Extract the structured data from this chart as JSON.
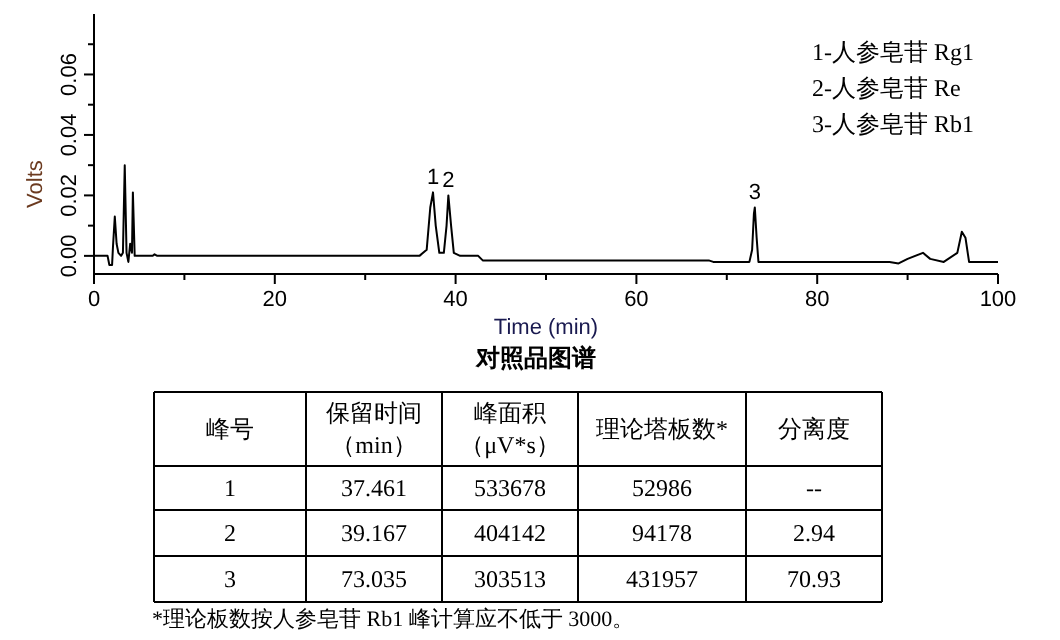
{
  "chart_data": [
    {
      "type": "line",
      "title": "对照品图谱",
      "xlabel": "Time (min)",
      "ylabel": "Volts",
      "color": "#000000",
      "grid": false,
      "xlim": [
        0,
        100
      ],
      "ylim": [
        -0.006,
        0.08
      ],
      "xticks": [
        0,
        {
          "value": 10,
          "label": null
        },
        20,
        {
          "value": 30,
          "label": null
        },
        40,
        {
          "value": 50,
          "label": null
        },
        60,
        {
          "value": 70,
          "label": null
        },
        80,
        {
          "value": 90,
          "label": null
        },
        100
      ],
      "yticks": [
        {
          "value": 0,
          "label": "0.00"
        },
        {
          "value": 0.01,
          "label": null
        },
        {
          "value": 0.02,
          "label": "0.02"
        },
        {
          "value": 0.03,
          "label": null
        },
        {
          "value": 0.04,
          "label": "0.04"
        },
        {
          "value": 0.05,
          "label": null
        },
        {
          "value": 0.06,
          "label": "0.06"
        },
        {
          "value": 0.07,
          "label": null
        }
      ],
      "x": [
        0,
        1.5,
        1.7,
        2.0,
        2.1,
        2.3,
        2.5,
        2.7,
        3.0,
        3.2,
        3.4,
        3.6,
        3.8,
        4.0,
        4.2,
        4.3,
        4.5,
        5,
        6.5,
        6.7,
        7,
        36,
        36.8,
        37.2,
        37.5,
        37.8,
        38.2,
        38.7,
        39.0,
        39.2,
        39.5,
        39.8,
        40.5,
        42.5,
        43,
        68,
        68.5,
        70,
        72.5,
        72.8,
        73.0,
        73.1,
        73.3,
        73.5,
        88,
        89,
        90,
        91.7,
        92.5,
        94,
        95.5,
        96.0,
        96.4,
        96.8,
        100
      ],
      "values": [
        0,
        0,
        -0.003,
        -0.003,
        0.003,
        0.013,
        0.004,
        0.001,
        0.0,
        0.001,
        0.03,
        0.001,
        -0.002,
        0.004,
        0.001,
        0.021,
        0.0,
        0,
        0,
        0.0005,
        0,
        0,
        0.002,
        0.016,
        0.021,
        0.01,
        0.001,
        0.001,
        0.01,
        0.02,
        0.01,
        0.001,
        0,
        0,
        -0.0015,
        -0.0015,
        -0.002,
        -0.002,
        -0.002,
        0.002,
        0.014,
        0.016,
        0.006,
        -0.002,
        -0.002,
        -0.0025,
        -0.001,
        0.001,
        -0.001,
        -0.002,
        0.001,
        0.008,
        0.006,
        -0.002,
        -0.002
      ],
      "annotations": [
        "1-人参皂苷 Rg1",
        "2-人参皂苷 Re",
        "3-人参皂苷 Rb1",
        {
          "text": "1",
          "x": 37.5,
          "y": 0.021
        },
        {
          "text": "2",
          "x": 39.2,
          "y": 0.02
        },
        {
          "text": "3",
          "x": 73.1,
          "y": 0.016
        }
      ]
    },
    {
      "type": "other",
      "categories": [
        "峰号",
        "保留时间（min）",
        "峰面积（μV*s）",
        "理论塔板数*",
        "分离度"
      ],
      "annotations": [
        "1",
        "37.461",
        "533678",
        "52986",
        "--",
        "2",
        "39.167",
        "404142",
        "94178",
        "2.94",
        "3",
        "73.035",
        "303513",
        "431957",
        "70.93",
        "*理论板数按人参皂苷 Rb1 峰计算应不低于 3000。"
      ]
    }
  ]
}
